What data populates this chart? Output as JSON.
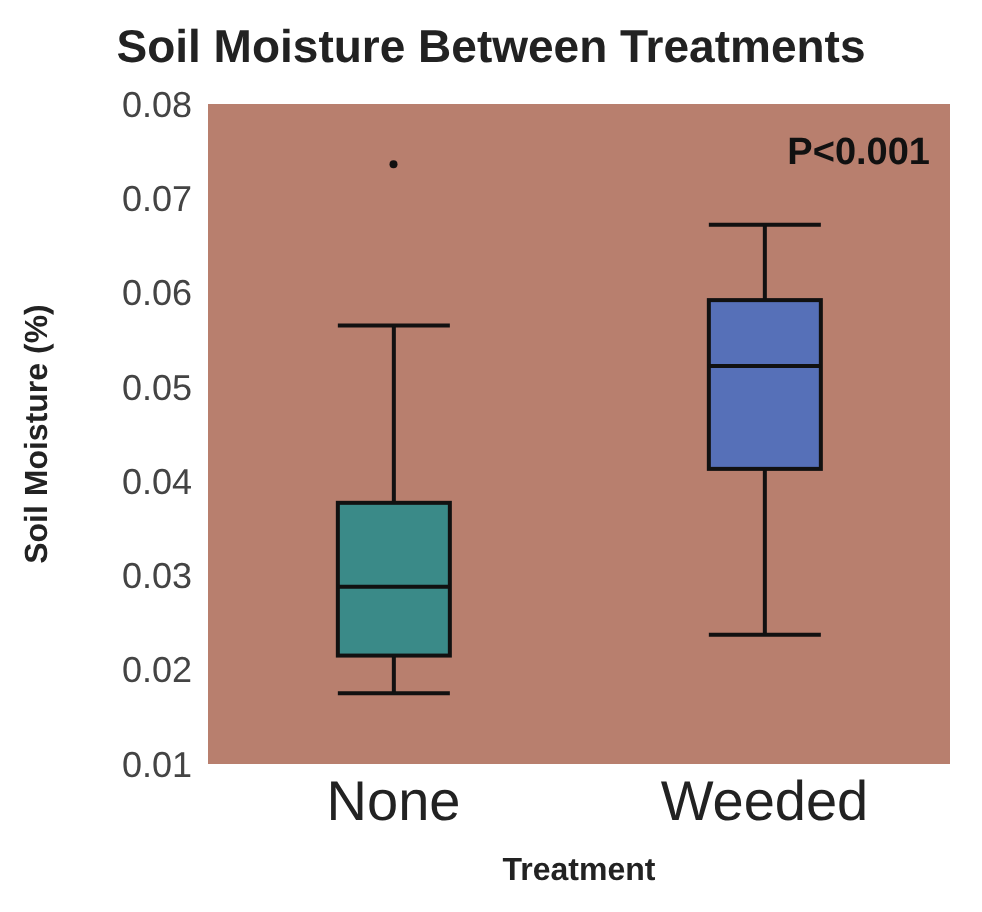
{
  "chart_data": {
    "type": "box",
    "title": "Soil Moisture Between Treatments",
    "xlabel": "Treatment",
    "ylabel": "Soil Moisture (%)",
    "categories": [
      "None",
      "Weeded"
    ],
    "colors": [
      "#3a8a88",
      "#5670b8"
    ],
    "boxes": [
      {
        "low": 0.0175,
        "q1": 0.0215,
        "median": 0.0288,
        "q3": 0.0377,
        "high": 0.0565,
        "outliers": [
          0.0736
        ]
      },
      {
        "low": 0.0237,
        "q1": 0.0413,
        "median": 0.0522,
        "q3": 0.0592,
        "high": 0.0672
      }
    ],
    "ylim": [
      0.01,
      0.08
    ],
    "yticks": [
      0.01,
      0.02,
      0.03,
      0.04,
      0.05,
      0.06,
      0.07,
      0.08
    ],
    "annotations": [
      "P<0.001"
    ]
  }
}
